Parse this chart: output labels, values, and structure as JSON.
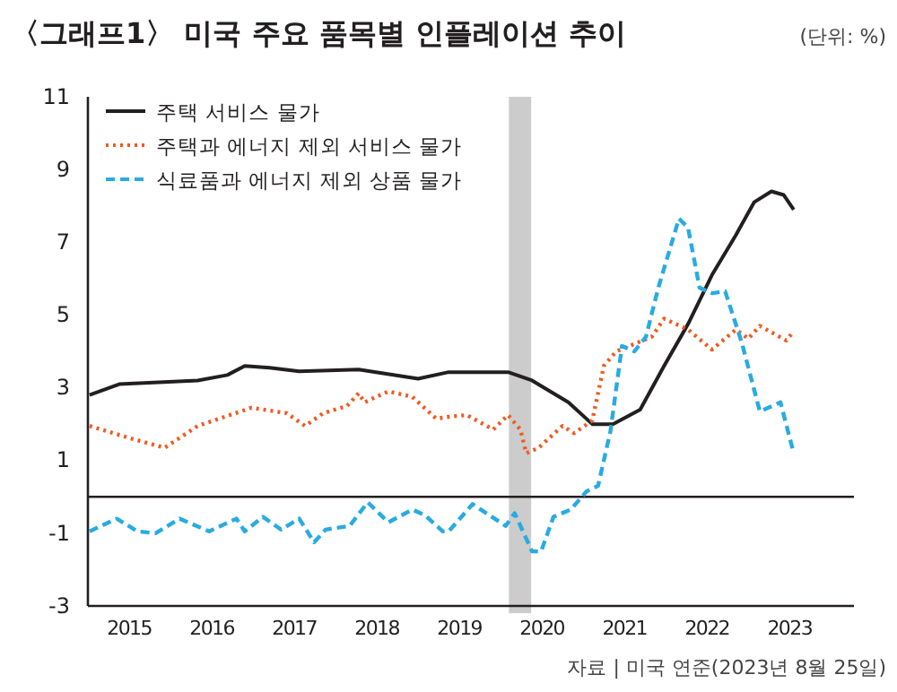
{
  "chart_data": {
    "type": "line",
    "title": "〈그래프1〉 미국 주요 품목별 인플레이션 추이",
    "annotations": [
      "(단위: %)",
      "자료 | 미국 연준(2023년 8월 25일)"
    ],
    "xlim": [
      2015,
      2024.28
    ],
    "ylim": [
      -3,
      11
    ],
    "xticks": [
      {
        "value": 2015.5,
        "label": "2015"
      },
      {
        "value": 2016.5,
        "label": "2016"
      },
      {
        "value": 2017.5,
        "label": "2017"
      },
      {
        "value": 2018.5,
        "label": "2018"
      },
      {
        "value": 2019.5,
        "label": "2019"
      },
      {
        "value": 2020.5,
        "label": "2020"
      },
      {
        "value": 2021.5,
        "label": "2021"
      },
      {
        "value": 2022.5,
        "label": "2022"
      },
      {
        "value": 2023.5,
        "label": "2023"
      }
    ],
    "yticks": [
      -3,
      -1,
      1,
      3,
      5,
      7,
      9,
      11
    ],
    "grid": false,
    "legend": "top left",
    "ref_lines": [
      {
        "axis": "y",
        "value": 0,
        "color": "#231f20"
      }
    ],
    "bands": [
      {
        "axis": "x",
        "from": 2020.1,
        "to": 2020.37,
        "color": "#cccccc"
      }
    ],
    "series": [
      {
        "name": "주택 서비스 물가",
        "color": "#231f20",
        "line_style": "solid",
        "x": [
          2015.02,
          2015.38,
          2016.33,
          2016.69,
          2016.9,
          2017.2,
          2017.56,
          2018.28,
          2019.0,
          2019.37,
          2020.09,
          2020.38,
          2020.82,
          2021.11,
          2021.36,
          2021.69,
          2021.98,
          2022.27,
          2022.56,
          2022.85,
          2023.07,
          2023.28,
          2023.43,
          2023.55
        ],
        "values": [
          2.8,
          3.1,
          3.2,
          3.35,
          3.6,
          3.55,
          3.45,
          3.5,
          3.25,
          3.43,
          3.43,
          3.2,
          2.6,
          2.0,
          2.0,
          2.4,
          3.6,
          4.75,
          6.1,
          7.2,
          8.1,
          8.4,
          8.3,
          7.9
        ]
      },
      {
        "name": "주택과 에너지 제외 서비스 물가",
        "color": "#f15a22",
        "line_style": "dotted",
        "x": [
          2015.02,
          2015.53,
          2015.93,
          2016.33,
          2016.98,
          2017.41,
          2017.63,
          2017.85,
          2018.14,
          2018.28,
          2018.35,
          2018.64,
          2018.93,
          2019.22,
          2019.37,
          2019.59,
          2019.91,
          2020.09,
          2020.24,
          2020.31,
          2020.46,
          2020.75,
          2020.89,
          2021.11,
          2021.25,
          2021.4,
          2021.83,
          2021.98,
          2022.27,
          2022.56,
          2022.85,
          2023.0,
          2023.14,
          2023.46,
          2023.55
        ],
        "values": [
          1.95,
          1.6,
          1.35,
          1.95,
          2.45,
          2.3,
          1.95,
          2.3,
          2.5,
          2.85,
          2.6,
          2.9,
          2.75,
          2.15,
          2.2,
          2.25,
          1.85,
          2.25,
          1.85,
          1.2,
          1.35,
          1.95,
          1.75,
          2.1,
          3.6,
          4.0,
          4.4,
          4.9,
          4.6,
          4.05,
          4.6,
          4.35,
          4.7,
          4.3,
          4.55
        ]
      },
      {
        "name": "식료품과 에너지 제외 상품 물가",
        "color": "#29abe2",
        "line_style": "dashed",
        "x": [
          2015.02,
          2015.35,
          2015.6,
          2015.82,
          2016.11,
          2016.47,
          2016.8,
          2016.9,
          2017.12,
          2017.34,
          2017.56,
          2017.74,
          2017.88,
          2018.17,
          2018.39,
          2018.64,
          2018.93,
          2019.08,
          2019.3,
          2019.37,
          2019.66,
          2020.06,
          2020.17,
          2020.38,
          2020.49,
          2020.64,
          2020.85,
          2021.04,
          2021.18,
          2021.33,
          2021.47,
          2021.62,
          2021.76,
          2021.91,
          2022.16,
          2022.27,
          2022.41,
          2022.56,
          2022.72,
          2022.92,
          2023.14,
          2023.39,
          2023.55
        ],
        "values": [
          -0.95,
          -0.6,
          -0.95,
          -1.0,
          -0.6,
          -0.95,
          -0.6,
          -0.95,
          -0.55,
          -0.9,
          -0.6,
          -1.25,
          -0.9,
          -0.8,
          -0.15,
          -0.7,
          -0.35,
          -0.5,
          -0.95,
          -0.95,
          -0.2,
          -0.8,
          -0.45,
          -1.5,
          -1.5,
          -0.55,
          -0.35,
          0.15,
          0.3,
          1.8,
          4.15,
          4.0,
          4.4,
          5.75,
          7.65,
          7.4,
          5.75,
          5.6,
          5.65,
          4.25,
          2.35,
          2.6,
          1.2
        ]
      }
    ]
  }
}
